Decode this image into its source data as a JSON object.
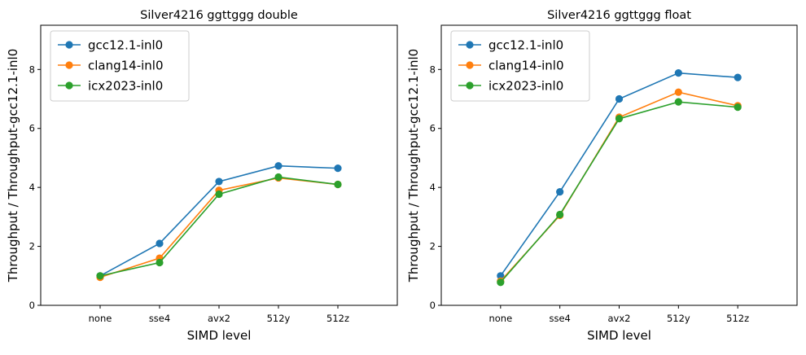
{
  "chart_data": [
    {
      "type": "line",
      "title": "Silver4216 ggttggg double",
      "xlabel": "SIMD level",
      "ylabel": "Throughput / Throughput-gcc12.1-inl0",
      "categories": [
        "none",
        "sse4",
        "avx2",
        "512y",
        "512z"
      ],
      "xlim": [
        -1,
        5
      ],
      "ylim": [
        0,
        9.5
      ],
      "yticks": [
        0,
        2,
        4,
        6,
        8
      ],
      "legend_position": "top-left",
      "series": [
        {
          "name": "gcc12.1-inl0",
          "color": "#1f77b4",
          "values": [
            1.0,
            2.1,
            4.2,
            4.73,
            4.65
          ]
        },
        {
          "name": "clang14-inl0",
          "color": "#ff7f0e",
          "values": [
            0.95,
            1.6,
            3.9,
            4.32,
            4.1
          ]
        },
        {
          "name": "icx2023-inl0",
          "color": "#2ca02c",
          "values": [
            1.0,
            1.45,
            3.77,
            4.35,
            4.1
          ]
        }
      ]
    },
    {
      "type": "line",
      "title": "Silver4216 ggttggg float",
      "xlabel": "SIMD level",
      "ylabel": "Throughput / Throughput-gcc12.1-inl0",
      "categories": [
        "none",
        "sse4",
        "avx2",
        "512y",
        "512z"
      ],
      "xlim": [
        -1,
        5
      ],
      "ylim": [
        0,
        9.5
      ],
      "yticks": [
        0,
        2,
        4,
        6,
        8
      ],
      "legend_position": "top-left",
      "series": [
        {
          "name": "gcc12.1-inl0",
          "color": "#1f77b4",
          "values": [
            1.0,
            3.85,
            7.0,
            7.88,
            7.73
          ]
        },
        {
          "name": "clang14-inl0",
          "color": "#ff7f0e",
          "values": [
            0.82,
            3.05,
            6.38,
            7.23,
            6.77
          ]
        },
        {
          "name": "icx2023-inl0",
          "color": "#2ca02c",
          "values": [
            0.78,
            3.08,
            6.33,
            6.9,
            6.72
          ]
        }
      ]
    }
  ]
}
